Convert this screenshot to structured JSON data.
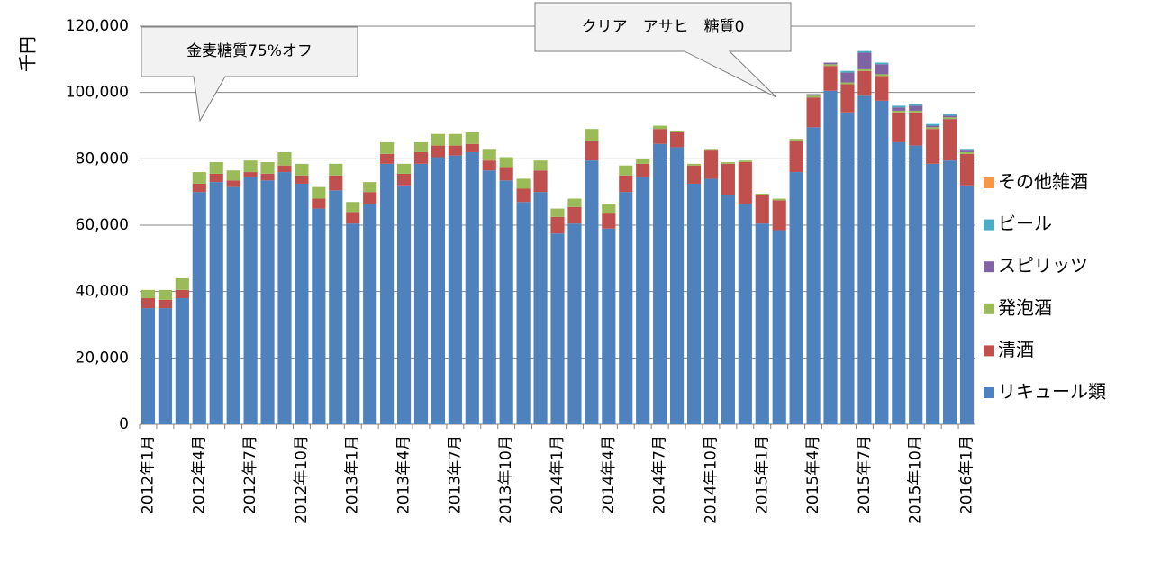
{
  "chart_data": {
    "type": "stacked_bar",
    "y_label": "千円",
    "annotations": [
      "金麦糖質75%オフ",
      "クリア　アサヒ　糖質0"
    ],
    "categories": [
      "2012年1月",
      null,
      null,
      "2012年4月",
      null,
      null,
      "2012年7月",
      null,
      null,
      "2012年10月",
      null,
      null,
      "2013年1月",
      null,
      null,
      "2013年4月",
      null,
      null,
      "2013年7月",
      null,
      null,
      "2013年10月",
      null,
      null,
      "2014年1月",
      null,
      null,
      "2014年4月",
      null,
      null,
      "2014年7月",
      null,
      null,
      "2014年10月",
      null,
      null,
      "2015年1月",
      null,
      null,
      "2015年4月",
      null,
      null,
      "2015年7月",
      null,
      null,
      "2015年10月",
      null,
      null,
      "2016年1月"
    ],
    "series": [
      {
        "name": "リキュール類",
        "color": "#4f81bd",
        "values": [
          35000,
          35000,
          38000,
          70000,
          73000,
          71500,
          74500,
          73500,
          76000,
          72500,
          65000,
          70500,
          60500,
          66500,
          78500,
          72000,
          78500,
          80500,
          81000,
          82000,
          76500,
          73500,
          67000,
          70000,
          57500,
          60500,
          79500,
          59000,
          70000,
          74500,
          84500,
          83500,
          72500,
          74000,
          69000,
          66500,
          60500,
          58500,
          76000,
          89500,
          100500,
          94000,
          99000,
          97500,
          85000,
          84000,
          78500,
          79500,
          72000
        ]
      },
      {
        "name": "清酒",
        "color": "#c0504d",
        "values": [
          3000,
          2500,
          2500,
          2500,
          2500,
          2000,
          1500,
          2000,
          2000,
          2500,
          3000,
          4500,
          3500,
          3500,
          3000,
          3500,
          3500,
          3500,
          3000,
          2500,
          3000,
          4000,
          4000,
          6500,
          5000,
          5000,
          6000,
          4500,
          5000,
          4000,
          4500,
          4500,
          5500,
          8500,
          9500,
          12500,
          8500,
          9000,
          9500,
          9000,
          7500,
          8500,
          7500,
          7500,
          9000,
          10000,
          10500,
          12500,
          9500
        ]
      },
      {
        "name": "発泡酒",
        "color": "#9bbb59",
        "values": [
          2500,
          3000,
          3500,
          3500,
          3500,
          3000,
          3500,
          3500,
          4000,
          3500,
          3500,
          3500,
          3000,
          3000,
          3500,
          3000,
          3000,
          3500,
          3500,
          3500,
          3500,
          3000,
          3000,
          3000,
          2500,
          2500,
          3500,
          3000,
          3000,
          1500,
          1000,
          500,
          500,
          500,
          500,
          500,
          500,
          500,
          500,
          500,
          500,
          500,
          500,
          500,
          500,
          500,
          500,
          500,
          500
        ]
      },
      {
        "name": "スピリッツ",
        "color": "#8064a2",
        "values": [
          0,
          0,
          0,
          0,
          0,
          0,
          0,
          0,
          0,
          0,
          0,
          0,
          0,
          0,
          0,
          0,
          0,
          0,
          0,
          0,
          0,
          0,
          0,
          0,
          0,
          0,
          0,
          0,
          0,
          0,
          0,
          0,
          0,
          0,
          0,
          0,
          0,
          0,
          0,
          500,
          500,
          3000,
          5000,
          3000,
          1000,
          1500,
          500,
          500,
          500
        ]
      },
      {
        "name": "ビール",
        "color": "#4bacc6",
        "values": [
          0,
          0,
          0,
          0,
          0,
          0,
          0,
          0,
          0,
          0,
          0,
          0,
          0,
          0,
          0,
          0,
          0,
          0,
          0,
          0,
          0,
          0,
          0,
          0,
          0,
          0,
          0,
          0,
          0,
          0,
          0,
          0,
          0,
          0,
          0,
          0,
          0,
          0,
          0,
          0,
          0,
          500,
          500,
          500,
          500,
          500,
          500,
          500,
          500
        ]
      },
      {
        "name": "その他雑酒",
        "color": "#f79646",
        "values": [
          0,
          0,
          0,
          0,
          0,
          0,
          0,
          0,
          0,
          0,
          0,
          0,
          0,
          0,
          0,
          0,
          0,
          0,
          0,
          0,
          0,
          0,
          0,
          0,
          0,
          0,
          0,
          0,
          0,
          0,
          0,
          0,
          0,
          0,
          0,
          0,
          0,
          0,
          0,
          0,
          0,
          0,
          0,
          0,
          0,
          0,
          0,
          0,
          0
        ]
      }
    ],
    "ylim": [
      0,
      120000
    ],
    "yticks": [
      0,
      {
        "value": 20000,
        "label": "20,000"
      },
      {
        "value": 40000,
        "label": "40,000"
      },
      {
        "value": 60000,
        "label": "60,000"
      },
      {
        "value": 80000,
        "label": "80,000"
      },
      {
        "value": 100000,
        "label": "100,000"
      },
      {
        "value": 120000,
        "label": "120,000"
      }
    ],
    "grid": true
  }
}
